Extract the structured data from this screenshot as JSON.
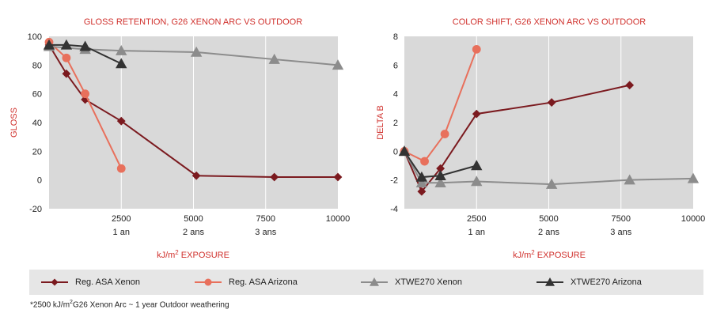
{
  "chart_data": [
    {
      "type": "line",
      "title": "GLOSS RETENTION, G26 XENON ARC VS OUTDOOR",
      "xlabel": "kJ/m² EXPOSURE",
      "ylabel": "GLOSS",
      "xlim": [
        0,
        10000
      ],
      "ylim": [
        -20,
        100
      ],
      "yticks": [
        -20,
        0,
        20,
        40,
        60,
        80,
        100
      ],
      "xticks": [
        2500,
        5000,
        7500,
        10000
      ],
      "xticks_sub": [
        "1 an",
        "2 ans",
        "3 ans"
      ],
      "grid": true,
      "series": [
        {
          "name": "Reg. ASA Xenon",
          "x": [
            0,
            600,
            1250,
            2500,
            5100,
            7800,
            10000
          ],
          "y": [
            94,
            74,
            56,
            41,
            3,
            2,
            2
          ]
        },
        {
          "name": "Reg. ASA Arizona",
          "x": [
            0,
            600,
            1250,
            2500
          ],
          "y": [
            96,
            85,
            60,
            8
          ]
        },
        {
          "name": "XTWE270 Xenon",
          "x": [
            0,
            1250,
            2500,
            5100,
            7800,
            10000
          ],
          "y": [
            93,
            91,
            90,
            89,
            84,
            80
          ]
        },
        {
          "name": "XTWE270 Arizona",
          "x": [
            0,
            600,
            1250,
            2500
          ],
          "y": [
            94,
            94,
            93,
            81
          ]
        }
      ]
    },
    {
      "type": "line",
      "title": "COLOR SHIFT, G26 XENON ARC VS OUTDOOR",
      "xlabel": "kJ/m² EXPOSURE",
      "ylabel": "DELTA B",
      "xlim": [
        0,
        10000
      ],
      "ylim": [
        -4,
        8
      ],
      "yticks": [
        -4,
        -2,
        0,
        2,
        4,
        6,
        8
      ],
      "xticks": [
        2500,
        5000,
        7500,
        10000
      ],
      "xticks_sub": [
        "1 an",
        "2 ans",
        "3 ans"
      ],
      "grid": true,
      "series": [
        {
          "name": "Reg. ASA Xenon",
          "x": [
            0,
            600,
            1250,
            2500,
            5100,
            7800
          ],
          "y": [
            0,
            -2.8,
            -1.2,
            2.6,
            3.4,
            4.6
          ]
        },
        {
          "name": "Reg. ASA Arizona",
          "x": [
            0,
            700,
            1400,
            2500
          ],
          "y": [
            0,
            -0.7,
            1.2,
            7.1
          ]
        },
        {
          "name": "XTWE270 Xenon",
          "x": [
            0,
            600,
            1250,
            2500,
            5100,
            7800,
            10000
          ],
          "y": [
            0,
            -2.2,
            -2.2,
            -2.1,
            -2.3,
            -2.0,
            -1.9
          ]
        },
        {
          "name": "XTWE270 Arizona",
          "x": [
            0,
            600,
            1250,
            2500
          ],
          "y": [
            0,
            -1.8,
            -1.7,
            -1.0
          ]
        }
      ]
    }
  ],
  "styles": {
    "Reg. ASA Xenon": {
      "color": "#7b1a1f",
      "marker": "diamond"
    },
    "Reg. ASA Arizona": {
      "color": "#e8705c",
      "marker": "circle"
    },
    "XTWE270 Xenon": {
      "color": "#8c8c8c",
      "marker": "triangle"
    },
    "XTWE270 Arizona": {
      "color": "#333333",
      "marker": "triangle"
    }
  },
  "legend": {
    "items": [
      "Reg. ASA Xenon",
      "Reg. ASA Arizona",
      "XTWE270 Xenon",
      "XTWE270 Arizona"
    ]
  },
  "footnote": {
    "prefix": "*2500 kJ/m",
    "sup": "2",
    "suffix": "G26 Xenon Arc ~ 1 year Outdoor weathering"
  }
}
